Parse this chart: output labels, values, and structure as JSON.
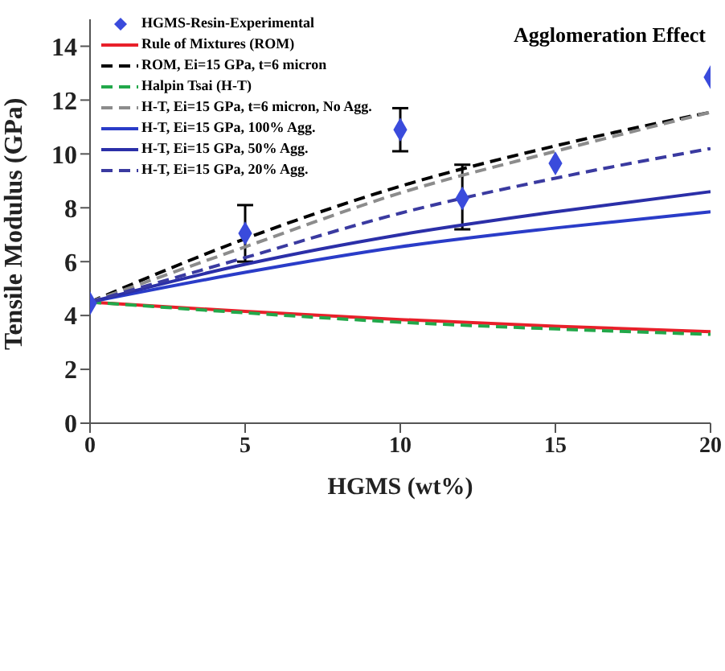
{
  "chart_data": {
    "type": "line",
    "title": "Agglomeration Effect",
    "xlabel": "HGMS (wt%)",
    "ylabel": "Tensile Modulus (GPa)",
    "xlim": [
      0,
      20
    ],
    "xticks": [
      0,
      5,
      10,
      15,
      20
    ],
    "ylim": [
      0,
      15
    ],
    "yticks": [
      0,
      2,
      4,
      6,
      8,
      10,
      12,
      14
    ],
    "grid": false,
    "legend": "top left",
    "series": [
      {
        "name": "HGMS-Resin-Experimental",
        "type": "scatter",
        "marker": "diamond",
        "color": "#3a4bdc",
        "x": [
          0,
          5,
          10,
          12,
          15,
          20
        ],
        "values": [
          4.45,
          7.05,
          10.9,
          8.35,
          9.65,
          12.85
        ],
        "errors": [
          null,
          [
            6.0,
            8.1
          ],
          [
            10.1,
            11.7
          ],
          [
            7.2,
            9.6
          ],
          null,
          null
        ]
      },
      {
        "name": "Rule of Mixtures (ROM)",
        "color": "#e8202a",
        "line_style": "solid",
        "x": [
          0,
          5,
          10,
          15,
          20
        ],
        "values": [
          4.5,
          4.15,
          3.85,
          3.6,
          3.4
        ]
      },
      {
        "name": "ROM, Ei=15 GPa, t=6 micron",
        "color": "#000000",
        "line_style": "dashed",
        "x": [
          0,
          5,
          10,
          15,
          20
        ],
        "values": [
          4.5,
          6.85,
          8.8,
          10.3,
          11.55
        ]
      },
      {
        "name": "Halpin Tsai (H-T)",
        "color": "#22a84a",
        "line_style": "dashed",
        "x": [
          0,
          5,
          10,
          15,
          20
        ],
        "values": [
          4.5,
          4.1,
          3.75,
          3.5,
          3.3
        ]
      },
      {
        "name": "H-T, Ei=15 GPa, t=6 micron, No Agg.",
        "color": "#8c8c8c",
        "line_style": "dashed",
        "x": [
          0,
          5,
          10,
          15,
          20
        ],
        "values": [
          4.5,
          6.55,
          8.55,
          10.1,
          11.55
        ]
      },
      {
        "name": "H-T, Ei=15 GPa, 100% Agg.",
        "color": "#2a3cc8",
        "line_style": "solid",
        "x": [
          0,
          5,
          10,
          15,
          20
        ],
        "values": [
          4.5,
          5.6,
          6.55,
          7.25,
          7.85
        ]
      },
      {
        "name": "H-T, Ei=15 GPa, 50% Agg.",
        "color": "#2b2fa8",
        "line_style": "solid",
        "x": [
          0,
          5,
          10,
          15,
          20
        ],
        "values": [
          4.5,
          5.9,
          7.0,
          7.85,
          8.6
        ]
      },
      {
        "name": "H-T, Ei=15 GPa, 20% Agg.",
        "color": "#3a3aa0",
        "line_style": "dashed",
        "x": [
          0,
          5,
          10,
          15,
          20
        ],
        "values": [
          4.5,
          6.15,
          7.8,
          9.1,
          10.2
        ]
      }
    ]
  }
}
